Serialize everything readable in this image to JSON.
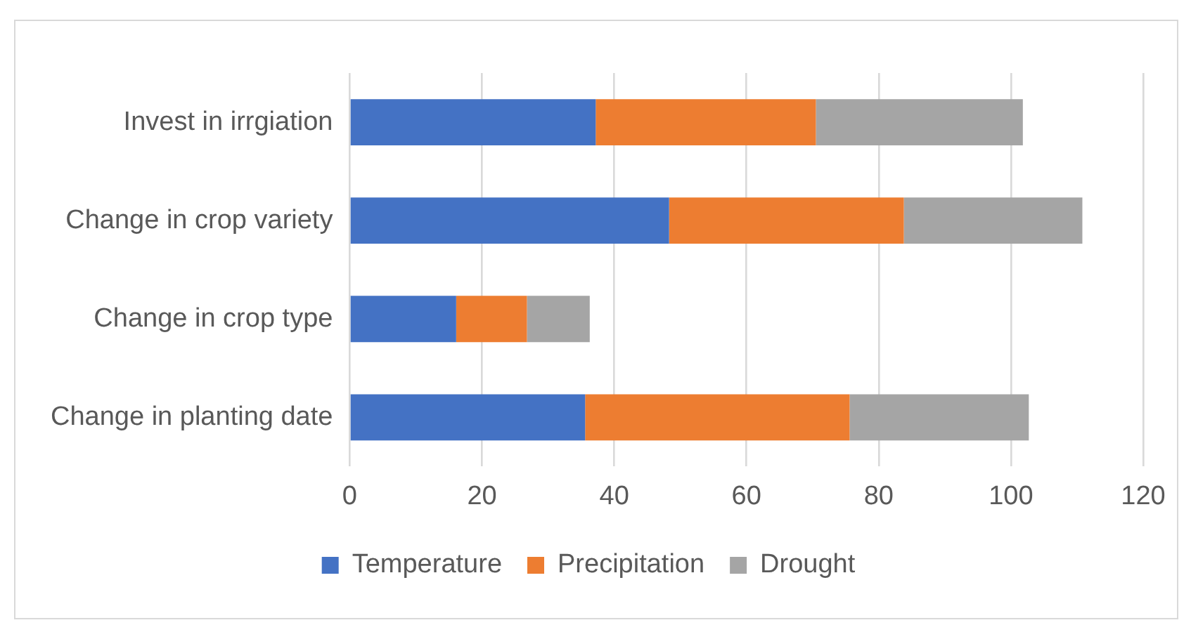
{
  "chart_data": {
    "type": "bar",
    "orientation": "horizontal",
    "stacked": true,
    "categories": [
      "Invest in irrgiation",
      "Change in crop variety",
      "Change in crop type",
      "Change in planting date"
    ],
    "series": [
      {
        "name": "Temperature",
        "color": "#4472c4",
        "values": [
          37.2,
          48.3,
          16.1,
          35.6
        ]
      },
      {
        "name": "Precipitation",
        "color": "#ed7d31",
        "values": [
          33.3,
          35.5,
          10.7,
          40.0
        ]
      },
      {
        "name": "Drought",
        "color": "#a5a5a5",
        "values": [
          31.3,
          27.0,
          9.5,
          27.1
        ]
      }
    ],
    "xlim": [
      0,
      120
    ],
    "xticks": [
      0,
      20,
      40,
      60,
      80,
      100,
      120
    ],
    "grid": "x",
    "legend": "bottom"
  }
}
